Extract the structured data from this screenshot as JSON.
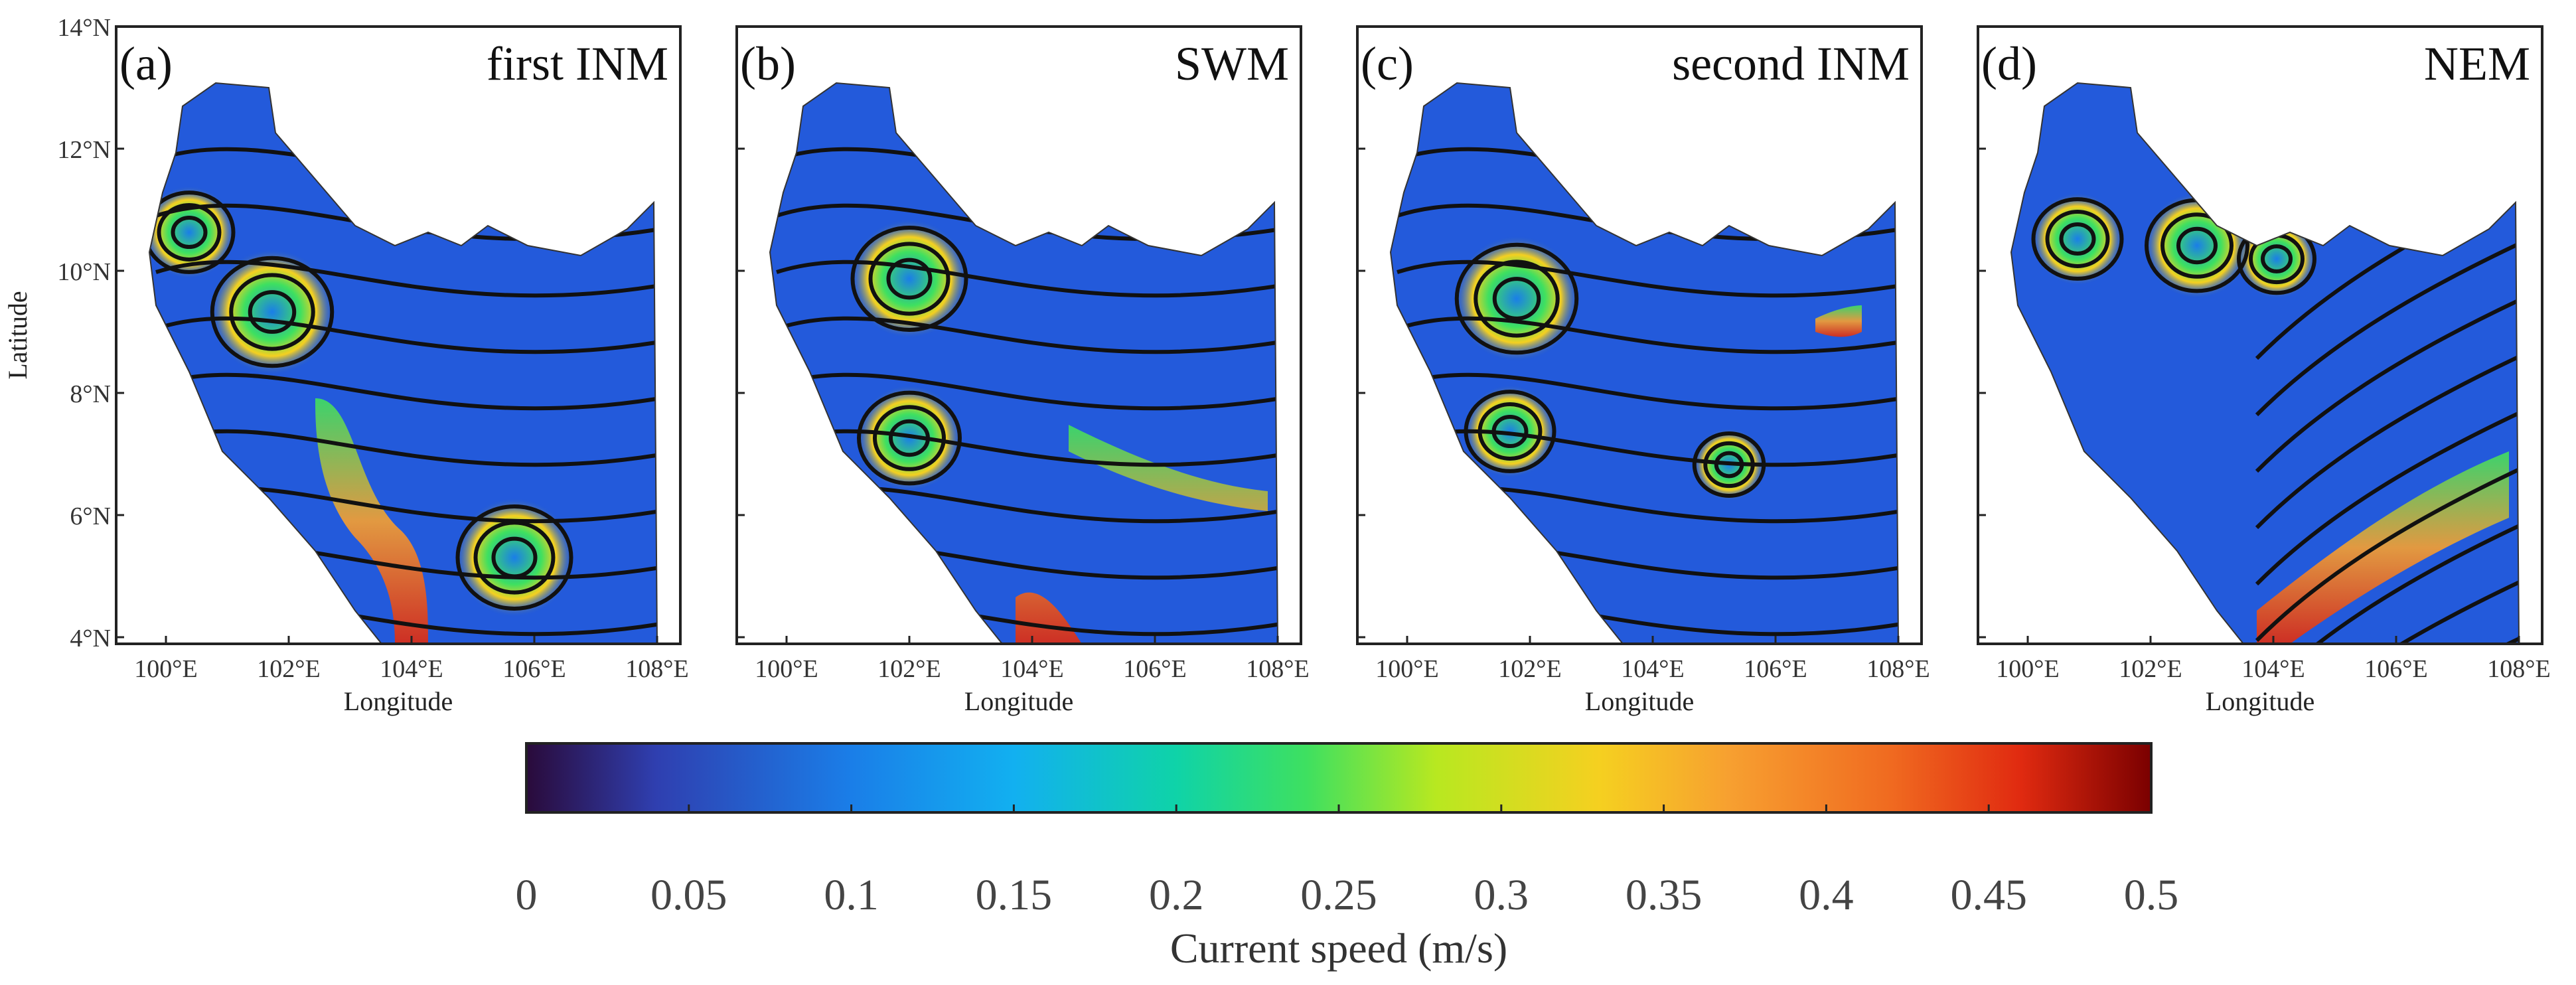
{
  "panels": [
    {
      "letter": "(a)",
      "title": "first INM"
    },
    {
      "letter": "(b)",
      "title": "SWM"
    },
    {
      "letter": "(c)",
      "title": "second INM"
    },
    {
      "letter": "(d)",
      "title": "NEM"
    }
  ],
  "axes": {
    "xlabel": "Longitude",
    "ylabel": "Latitude",
    "xticks": [
      "100°E",
      "102°E",
      "104°E",
      "106°E",
      "108°E"
    ],
    "yticks": [
      "14°N",
      "12°N",
      "10°N",
      "8°N",
      "6°N",
      "4°N"
    ]
  },
  "colorbar": {
    "label": "Current speed (m/s)",
    "ticks": [
      "0",
      "0.05",
      "0.1",
      "0.15",
      "0.2",
      "0.25",
      "0.3",
      "0.35",
      "0.4",
      "0.45",
      "0.5"
    ],
    "colors": [
      "#2a0a3a",
      "#2f3fb0",
      "#1a7ee8",
      "#12b0f0",
      "#0fd3a8",
      "#3ee060",
      "#b8e820",
      "#f5d020",
      "#f7a030",
      "#f06a20",
      "#e02a10",
      "#7a0000"
    ]
  }
}
